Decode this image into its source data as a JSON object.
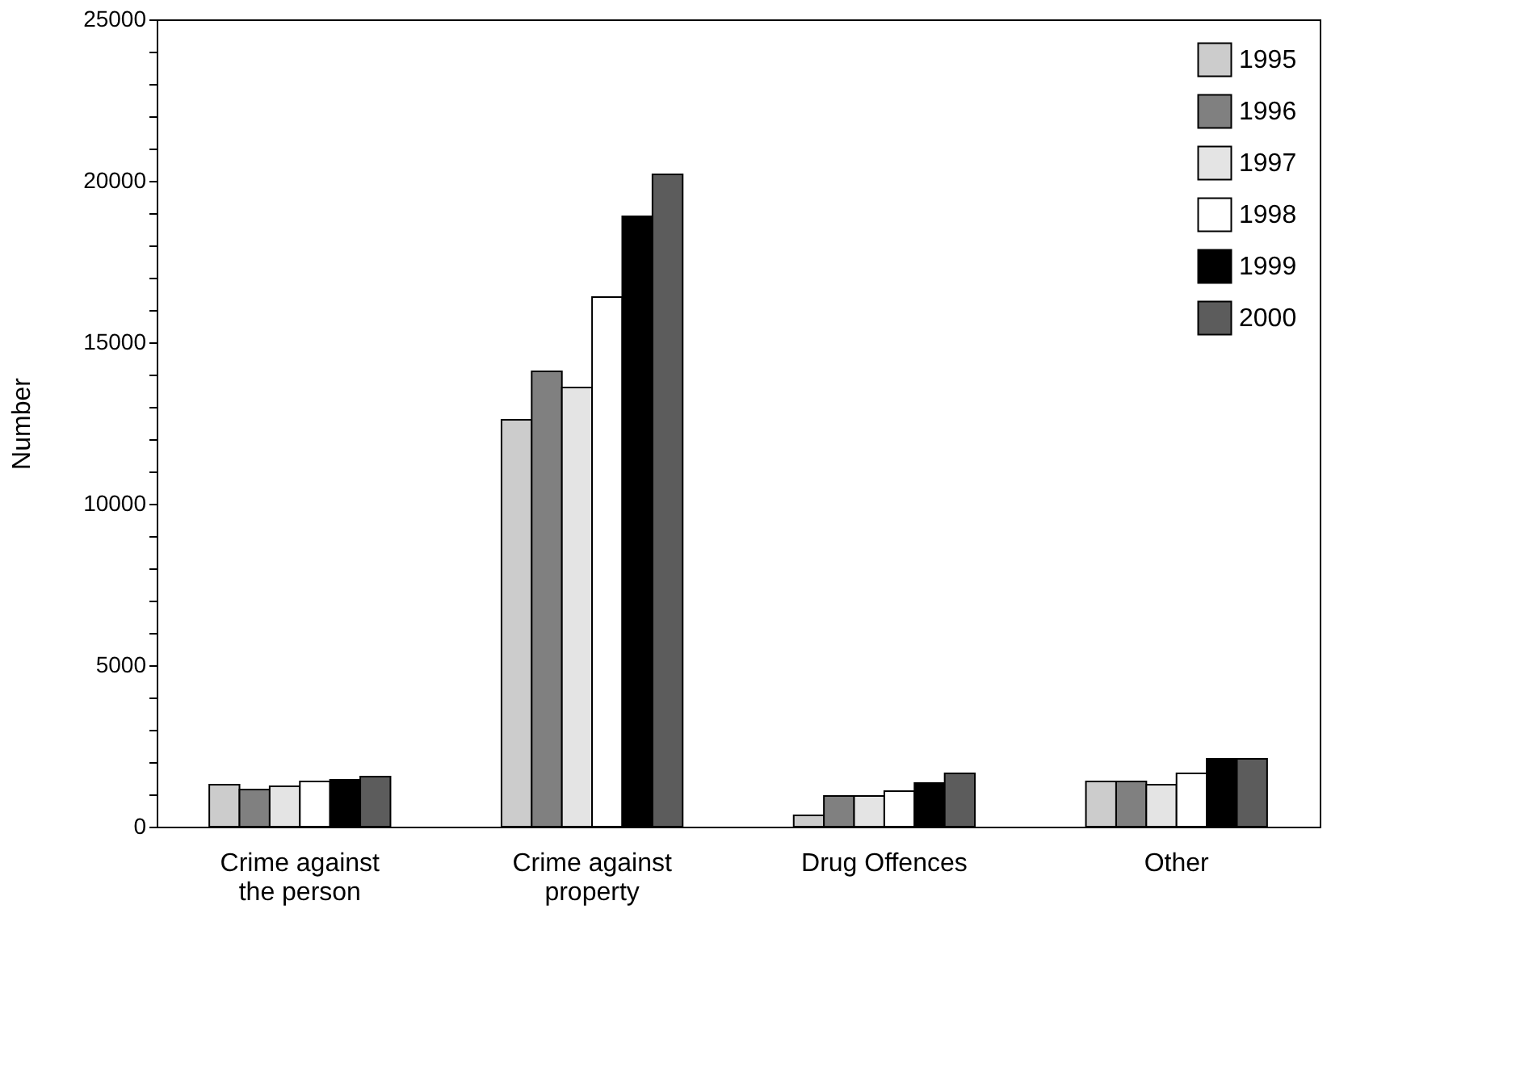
{
  "chart_data": {
    "type": "bar",
    "ylabel": "Number",
    "categories": [
      "Crime against the person",
      "Crime against property",
      "Drug Offences",
      "Other"
    ],
    "series": [
      {
        "name": "1995",
        "color": "#cccccc",
        "values": [
          1300,
          12600,
          350,
          1400
        ]
      },
      {
        "name": "1996",
        "color": "#808080",
        "values": [
          1150,
          14100,
          950,
          1400
        ]
      },
      {
        "name": "1997",
        "color": "#e4e4e4",
        "values": [
          1250,
          13600,
          950,
          1300
        ]
      },
      {
        "name": "1998",
        "color": "#ffffff",
        "values": [
          1400,
          16400,
          1100,
          1650
        ]
      },
      {
        "name": "1999",
        "color": "#000000",
        "values": [
          1450,
          18900,
          1350,
          2100
        ]
      },
      {
        "name": "2000",
        "color": "#5c5c5c",
        "values": [
          1550,
          20200,
          1650,
          2100
        ]
      }
    ],
    "ylim": [
      0,
      25000
    ],
    "yticks": [
      0,
      {
        "value": 1000,
        "label": null
      },
      {
        "value": 2000,
        "label": null
      },
      {
        "value": 3000,
        "label": null
      },
      {
        "value": 4000,
        "label": null
      },
      5000,
      {
        "value": 6000,
        "label": null
      },
      {
        "value": 7000,
        "label": null
      },
      {
        "value": 8000,
        "label": null
      },
      {
        "value": 9000,
        "label": null
      },
      10000,
      {
        "value": 11000,
        "label": null
      },
      {
        "value": 12000,
        "label": null
      },
      {
        "value": 13000,
        "label": null
      },
      {
        "value": 14000,
        "label": null
      },
      15000,
      {
        "value": 16000,
        "label": null
      },
      {
        "value": 17000,
        "label": null
      },
      {
        "value": 18000,
        "label": null
      },
      {
        "value": 19000,
        "label": null
      },
      20000,
      {
        "value": 21000,
        "label": null
      },
      {
        "value": 22000,
        "label": null
      },
      {
        "value": 23000,
        "label": null
      },
      {
        "value": 24000,
        "label": null
      },
      25000
    ],
    "grid": false,
    "legend": "top right"
  }
}
